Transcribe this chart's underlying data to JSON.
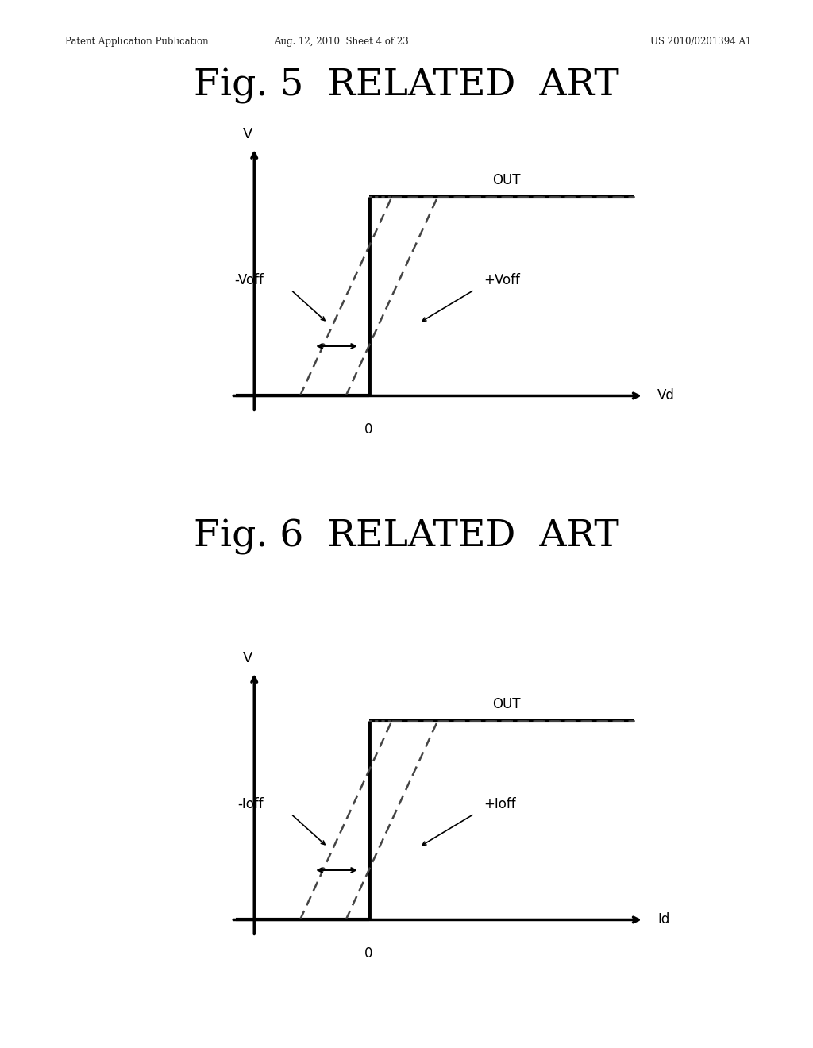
{
  "background_color": "#ffffff",
  "header_left": "Patent Application Publication",
  "header_mid": "Aug. 12, 2010  Sheet 4 of 23",
  "header_right": "US 2010/0201394 A1",
  "fig5_title": "Fig. 5  RELATED  ART",
  "fig6_title": "Fig. 6  RELATED  ART",
  "fig5_xlabel": "Vd",
  "fig5_ylabel": "V",
  "fig5_out_label": "OUT",
  "fig5_neg_label": "-Voff",
  "fig5_pos_label": "+Voff",
  "fig5_origin": "0",
  "fig6_xlabel": "Id",
  "fig6_ylabel": "V",
  "fig6_out_label": "OUT",
  "fig6_neg_label": "-Ioff",
  "fig6_pos_label": "+Ioff",
  "fig6_origin": "0",
  "line_color": "#000000",
  "dashed_color": "#444444"
}
